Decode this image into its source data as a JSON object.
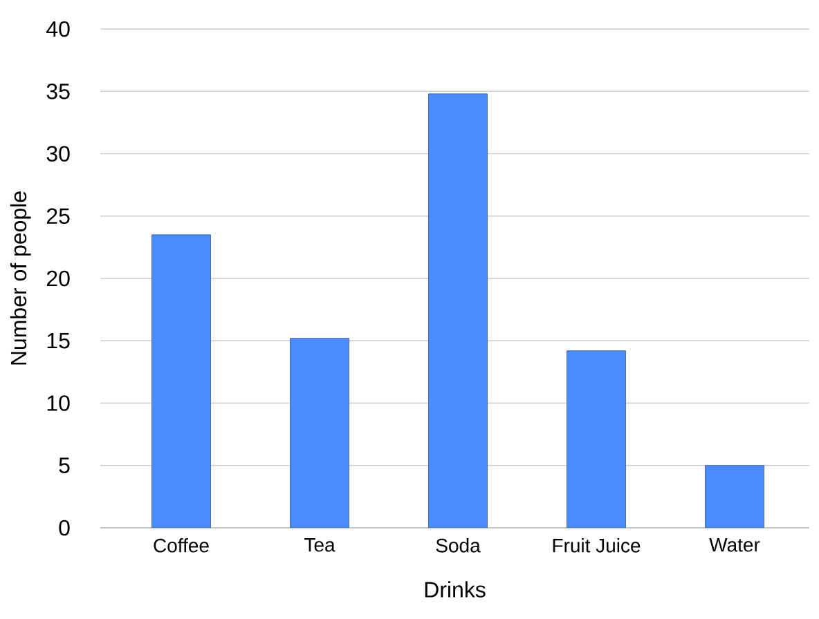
{
  "chart_data": {
    "type": "bar",
    "xlabel": "Drinks",
    "ylabel": "Number of people",
    "categories": [
      "Coffee",
      "Tea",
      "Soda",
      "Fruit Juice",
      "Water"
    ],
    "values": [
      23.5,
      15.2,
      34.8,
      14.2,
      5
    ],
    "color": "#4a8cff",
    "ylim": [
      0,
      40
    ],
    "yticks": [
      0,
      5,
      10,
      15,
      20,
      25,
      30,
      35,
      40
    ],
    "grid": "y"
  }
}
